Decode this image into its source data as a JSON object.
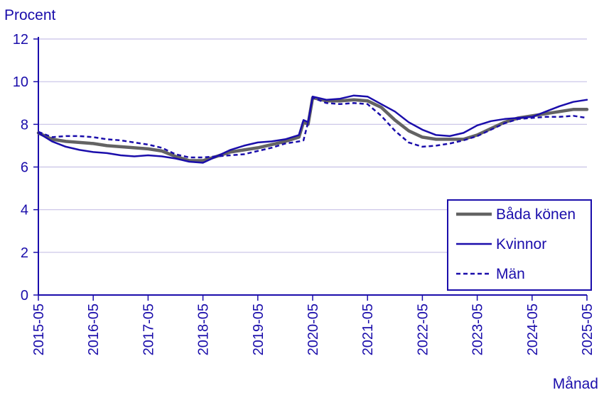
{
  "chart_data": {
    "type": "line",
    "ylabel": "Procent",
    "xlabel": "Månad",
    "ylim": [
      0,
      12
    ],
    "yticks": [
      0,
      2,
      4,
      6,
      8,
      10,
      12
    ],
    "xticks": [
      "2015-05",
      "2016-05",
      "2017-05",
      "2018-05",
      "2019-05",
      "2020-05",
      "2021-05",
      "2022-05",
      "2023-05",
      "2024-05",
      "2025-05"
    ],
    "grid": "horizontal",
    "legend_position": "bottom-right",
    "x": [
      "2015-05",
      "2015-08",
      "2015-11",
      "2016-02",
      "2016-05",
      "2016-08",
      "2016-11",
      "2017-02",
      "2017-05",
      "2017-08",
      "2017-11",
      "2018-02",
      "2018-05",
      "2018-08",
      "2018-11",
      "2019-02",
      "2019-05",
      "2019-08",
      "2019-11",
      "2020-02",
      "2020-03",
      "2020-04",
      "2020-05",
      "2020-08",
      "2020-11",
      "2021-02",
      "2021-05",
      "2021-08",
      "2021-11",
      "2022-02",
      "2022-05",
      "2022-08",
      "2022-11",
      "2023-02",
      "2023-05",
      "2023-08",
      "2023-11",
      "2024-02",
      "2024-05",
      "2024-08",
      "2024-11",
      "2025-02",
      "2025-05"
    ],
    "series": [
      {
        "name": "Båda könen",
        "color": "#636363",
        "style": "solid-thick",
        "values": [
          7.6,
          7.3,
          7.2,
          7.15,
          7.1,
          7.0,
          6.95,
          6.9,
          6.85,
          6.75,
          6.5,
          6.3,
          6.3,
          6.5,
          6.7,
          6.8,
          6.9,
          7.05,
          7.2,
          7.4,
          8.1,
          8.0,
          9.25,
          9.1,
          9.1,
          9.15,
          9.1,
          8.8,
          8.2,
          7.7,
          7.4,
          7.3,
          7.3,
          7.3,
          7.5,
          7.8,
          8.1,
          8.3,
          8.4,
          8.5,
          8.6,
          8.7,
          8.7
        ]
      },
      {
        "name": "Kvinnor",
        "color": "#1a0dab",
        "style": "solid",
        "values": [
          7.6,
          7.2,
          6.95,
          6.8,
          6.7,
          6.65,
          6.55,
          6.5,
          6.55,
          6.5,
          6.4,
          6.25,
          6.2,
          6.5,
          6.8,
          7.0,
          7.15,
          7.2,
          7.3,
          7.5,
          8.2,
          8.1,
          9.3,
          9.15,
          9.2,
          9.35,
          9.3,
          8.95,
          8.6,
          8.1,
          7.75,
          7.5,
          7.45,
          7.6,
          7.95,
          8.15,
          8.25,
          8.3,
          8.35,
          8.6,
          8.85,
          9.05,
          9.15
        ]
      },
      {
        "name": "Män",
        "color": "#1a0dab",
        "style": "dashed",
        "values": [
          7.65,
          7.4,
          7.45,
          7.45,
          7.4,
          7.3,
          7.25,
          7.15,
          7.05,
          6.9,
          6.6,
          6.45,
          6.45,
          6.5,
          6.55,
          6.6,
          6.75,
          6.9,
          7.1,
          7.2,
          7.25,
          8.1,
          9.25,
          9.0,
          8.95,
          9.0,
          8.95,
          8.4,
          7.7,
          7.15,
          6.95,
          7.0,
          7.1,
          7.25,
          7.45,
          7.75,
          8.05,
          8.25,
          8.3,
          8.35,
          8.35,
          8.4,
          8.3
        ]
      }
    ]
  }
}
